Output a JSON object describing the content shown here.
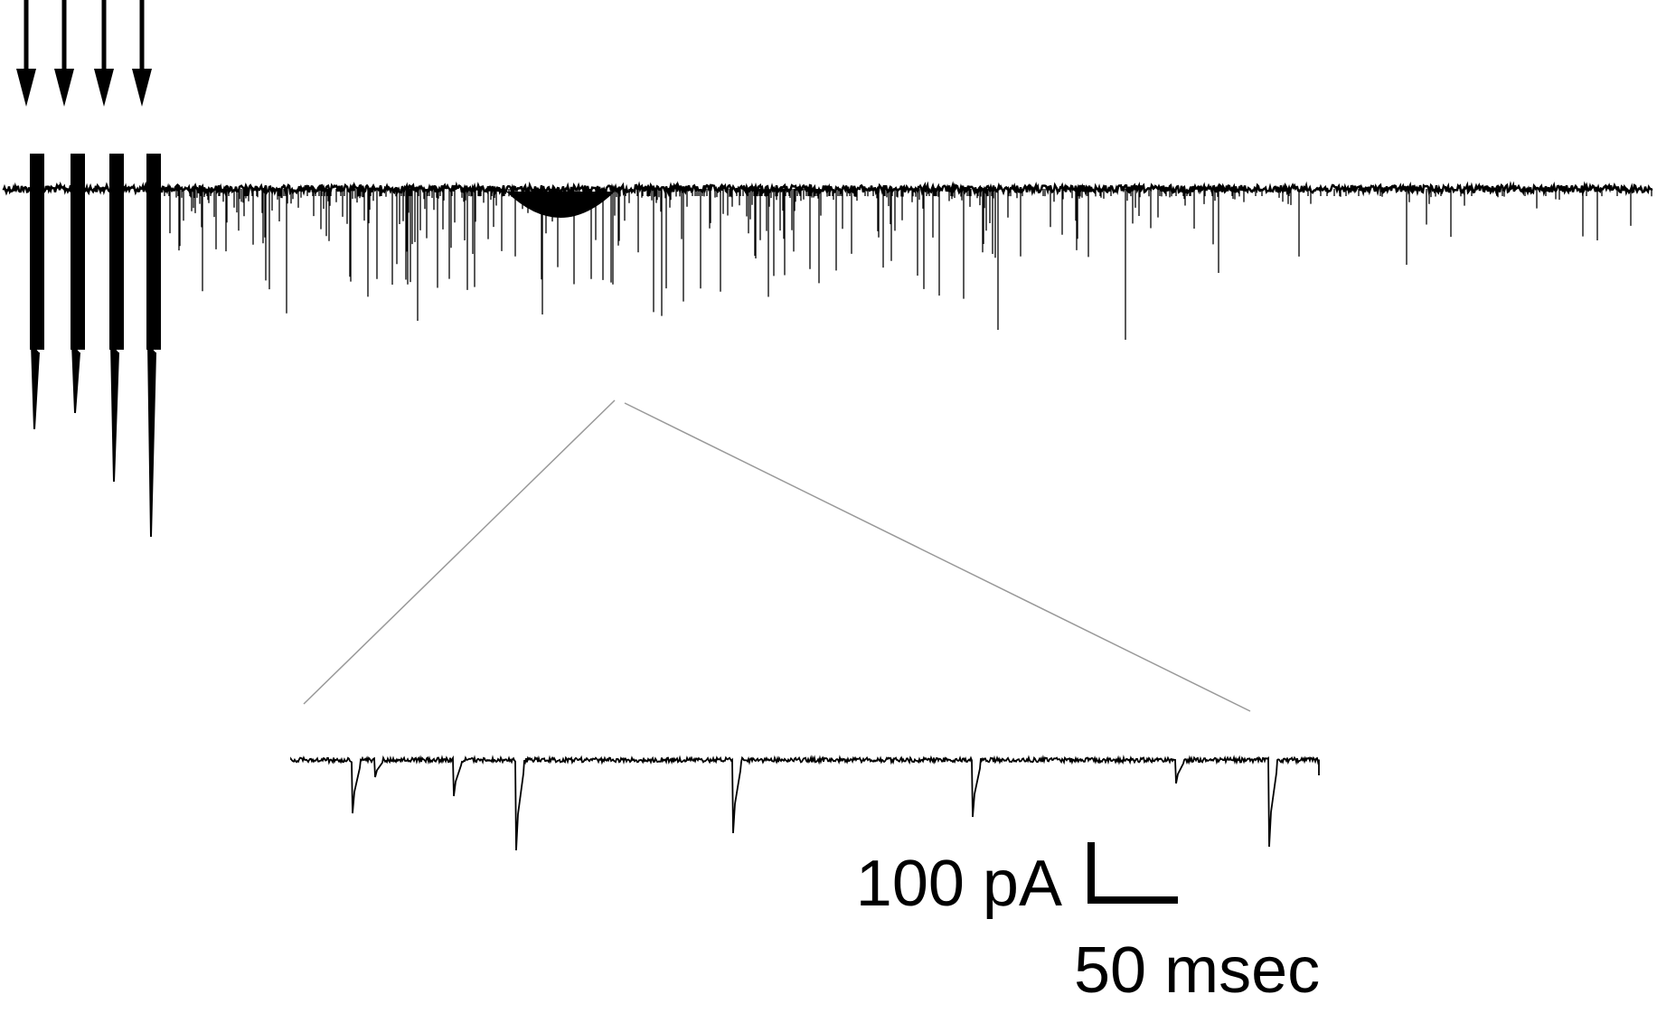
{
  "scale_bar": {
    "amplitude_label": "100 pA",
    "time_label": "50 msec"
  }
}
